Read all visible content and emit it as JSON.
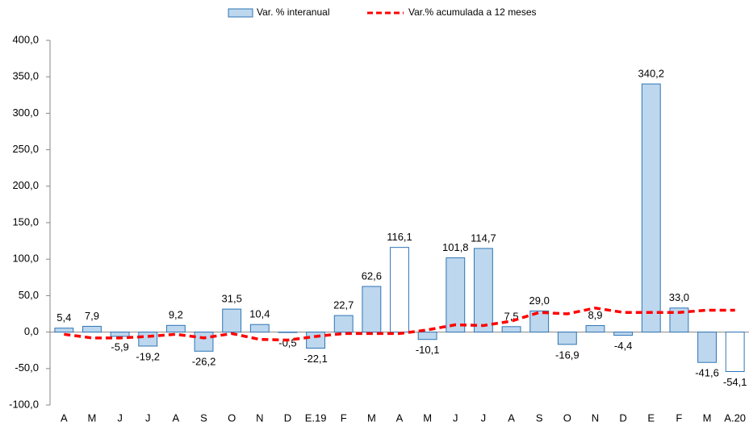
{
  "chart_data": {
    "type": "bar",
    "categories": [
      "A",
      "M",
      "J",
      "J",
      "A",
      "S",
      "O",
      "N",
      "D",
      "E.19",
      "F",
      "M",
      "A",
      "M",
      "J",
      "J",
      "A",
      "S",
      "O",
      "N",
      "D",
      "E",
      "F",
      "M",
      "A.20"
    ],
    "series": [
      {
        "name": "Var. % interanual",
        "type": "bar",
        "color": "#bdd7ee",
        "stroke": "#2e75b6",
        "fills": [
          "#bdd7ee",
          "#bdd7ee",
          "#bdd7ee",
          "#bdd7ee",
          "#bdd7ee",
          "#bdd7ee",
          "#bdd7ee",
          "#bdd7ee",
          "#bdd7ee",
          "#bdd7ee",
          "#bdd7ee",
          "#bdd7ee",
          "#ffffff",
          "#bdd7ee",
          "#bdd7ee",
          "#bdd7ee",
          "#bdd7ee",
          "#bdd7ee",
          "#bdd7ee",
          "#bdd7ee",
          "#bdd7ee",
          "#bdd7ee",
          "#bdd7ee",
          "#bdd7ee",
          "#ffffff"
        ],
        "values": [
          5.4,
          7.9,
          -5.9,
          -19.2,
          9.2,
          -26.2,
          31.5,
          10.4,
          -0.5,
          -22.1,
          22.7,
          62.6,
          116.1,
          -10.1,
          101.8,
          114.7,
          7.5,
          29.0,
          -16.9,
          8.9,
          -4.4,
          340.2,
          33.0,
          -41.6,
          -54.1
        ],
        "value_labels": [
          "5,4",
          "7,9",
          "-5,9",
          "-19,2",
          "9,2",
          "-26,2",
          "31,5",
          "10,4",
          "-0,5",
          "-22,1",
          "22,7",
          "62,6",
          "116,1",
          "-10,1",
          "101,8",
          "114,7",
          "7,5",
          "29,0",
          "-16,9",
          "8,9",
          "-4,4",
          "340,2",
          "33,0",
          "-41,6",
          "-54,1"
        ]
      },
      {
        "name": "Var.% acumulada a 12 meses",
        "type": "line",
        "color": "#ff0000",
        "values": [
          -3,
          -8,
          -8,
          -6,
          -3,
          -8,
          -2,
          -10,
          -11,
          -6,
          -2,
          -2,
          -2,
          3,
          10,
          9,
          15,
          27,
          25,
          33,
          27,
          27,
          27,
          30,
          30
        ]
      }
    ],
    "ylim": [
      -100,
      400
    ],
    "yticks": [
      {
        "value": -100,
        "label": "-100,0"
      },
      {
        "value": -50,
        "label": "-50,0"
      },
      {
        "value": 0,
        "label": "0,0"
      },
      {
        "value": 50,
        "label": "50,0"
      },
      {
        "value": 100,
        "label": "100,0"
      },
      {
        "value": 150,
        "label": "150,0"
      },
      {
        "value": 200,
        "label": "200,0"
      },
      {
        "value": 250,
        "label": "250,0"
      },
      {
        "value": 300,
        "label": "300,0"
      },
      {
        "value": 350,
        "label": "350,0"
      },
      {
        "value": 400,
        "label": "400,0"
      }
    ],
    "legend": "top"
  }
}
